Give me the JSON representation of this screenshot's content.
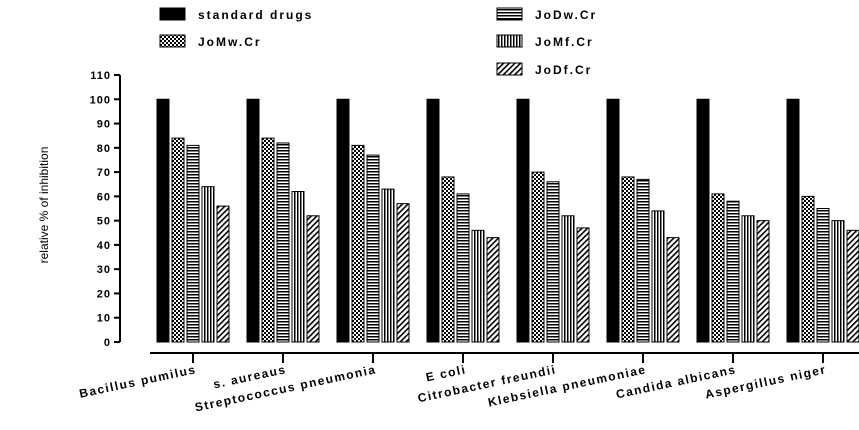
{
  "chart_data": {
    "type": "bar",
    "title": "",
    "xlabel": "",
    "ylabel": "relative % of inhibition",
    "ylim": [
      0,
      110
    ],
    "yticks": [
      0,
      10,
      20,
      30,
      40,
      50,
      60,
      70,
      80,
      90,
      100,
      110
    ],
    "grid": false,
    "legend_position": "top",
    "categories": [
      "Bacillus pumilus",
      "s. aureaus",
      "Streptococcus pneumonia",
      "E coli",
      "Citrobacter freundii",
      "Klebsiella pneumoniae",
      "Candida albicans",
      "Aspergillus niger"
    ],
    "series": [
      {
        "name": "standard drugs",
        "pattern": "solid",
        "values": [
          100,
          100,
          100,
          100,
          100,
          100,
          100,
          100
        ]
      },
      {
        "name": "JoMw.Cr",
        "pattern": "checker",
        "values": [
          84,
          84,
          81,
          68,
          70,
          68,
          61,
          60
        ]
      },
      {
        "name": "JoDw.Cr",
        "pattern": "horizontal",
        "values": [
          81,
          82,
          77,
          61,
          66,
          67,
          58,
          55
        ]
      },
      {
        "name": "JoMf.Cr",
        "pattern": "vertical",
        "values": [
          64,
          62,
          63,
          46,
          52,
          54,
          52,
          50
        ]
      },
      {
        "name": "JoDf.Cr",
        "pattern": "diagonal",
        "values": [
          56,
          52,
          57,
          43,
          47,
          43,
          50,
          46
        ]
      }
    ],
    "colors": {
      "ink": "#000000",
      "background": "#ffffff"
    }
  }
}
